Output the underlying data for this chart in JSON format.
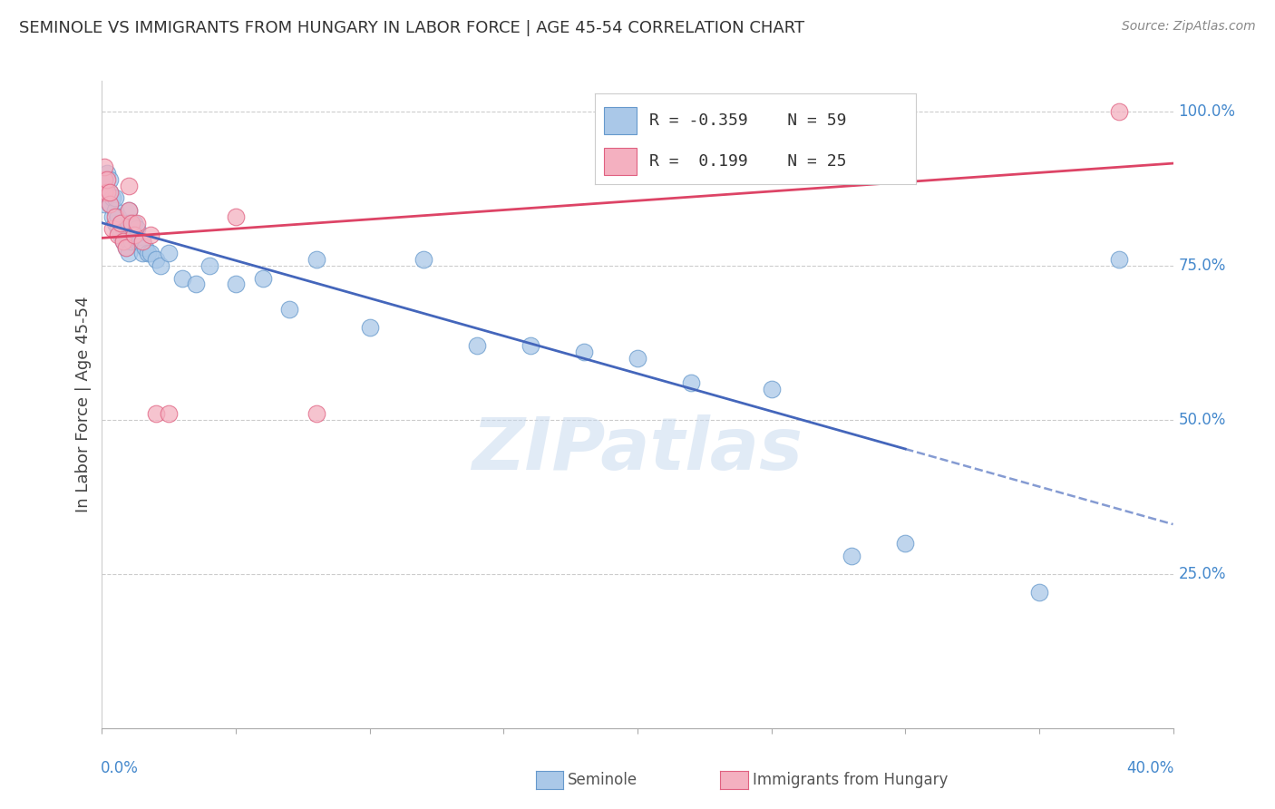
{
  "title": "SEMINOLE VS IMMIGRANTS FROM HUNGARY IN LABOR FORCE | AGE 45-54 CORRELATION CHART",
  "source": "Source: ZipAtlas.com",
  "ylabel": "In Labor Force | Age 45-54",
  "x_min": 0.0,
  "x_max": 0.4,
  "y_min": 0.0,
  "y_max": 1.05,
  "seminole_R": -0.359,
  "seminole_N": 59,
  "hungary_R": 0.199,
  "hungary_N": 25,
  "seminole_color": "#aac8e8",
  "hungary_color": "#f4b0c0",
  "seminole_edge_color": "#6699cc",
  "hungary_edge_color": "#e06080",
  "seminole_line_color": "#4466bb",
  "hungary_line_color": "#dd4466",
  "watermark": "ZIPatlas",
  "grid_color": "#cccccc",
  "right_tick_color": "#4488cc",
  "bottom_tick_color": "#4488cc",
  "seminole_x": [
    0.001,
    0.001,
    0.002,
    0.002,
    0.003,
    0.003,
    0.003,
    0.004,
    0.004,
    0.005,
    0.005,
    0.005,
    0.006,
    0.006,
    0.007,
    0.007,
    0.008,
    0.008,
    0.009,
    0.009,
    0.01,
    0.01,
    0.01,
    0.01,
    0.01,
    0.011,
    0.011,
    0.012,
    0.012,
    0.013,
    0.013,
    0.014,
    0.015,
    0.015,
    0.016,
    0.017,
    0.018,
    0.02,
    0.022,
    0.025,
    0.03,
    0.035,
    0.04,
    0.05,
    0.06,
    0.07,
    0.08,
    0.1,
    0.12,
    0.14,
    0.16,
    0.18,
    0.2,
    0.22,
    0.25,
    0.28,
    0.3,
    0.35,
    0.38
  ],
  "seminole_y": [
    0.85,
    0.88,
    0.87,
    0.9,
    0.85,
    0.87,
    0.89,
    0.83,
    0.86,
    0.82,
    0.84,
    0.86,
    0.81,
    0.83,
    0.8,
    0.82,
    0.79,
    0.81,
    0.78,
    0.8,
    0.84,
    0.82,
    0.8,
    0.79,
    0.77,
    0.81,
    0.79,
    0.82,
    0.8,
    0.81,
    0.79,
    0.79,
    0.79,
    0.77,
    0.78,
    0.77,
    0.77,
    0.76,
    0.75,
    0.77,
    0.73,
    0.72,
    0.75,
    0.72,
    0.73,
    0.68,
    0.76,
    0.65,
    0.76,
    0.62,
    0.62,
    0.61,
    0.6,
    0.56,
    0.55,
    0.28,
    0.3,
    0.22,
    0.76
  ],
  "hungary_x": [
    0.001,
    0.001,
    0.001,
    0.002,
    0.002,
    0.003,
    0.003,
    0.004,
    0.005,
    0.006,
    0.007,
    0.008,
    0.009,
    0.01,
    0.01,
    0.011,
    0.012,
    0.013,
    0.015,
    0.018,
    0.02,
    0.025,
    0.05,
    0.08,
    0.38
  ],
  "hungary_y": [
    0.87,
    0.89,
    0.91,
    0.87,
    0.89,
    0.85,
    0.87,
    0.81,
    0.83,
    0.8,
    0.82,
    0.79,
    0.78,
    0.88,
    0.84,
    0.82,
    0.8,
    0.82,
    0.79,
    0.8,
    0.51,
    0.51,
    0.83,
    0.51,
    1.0
  ]
}
